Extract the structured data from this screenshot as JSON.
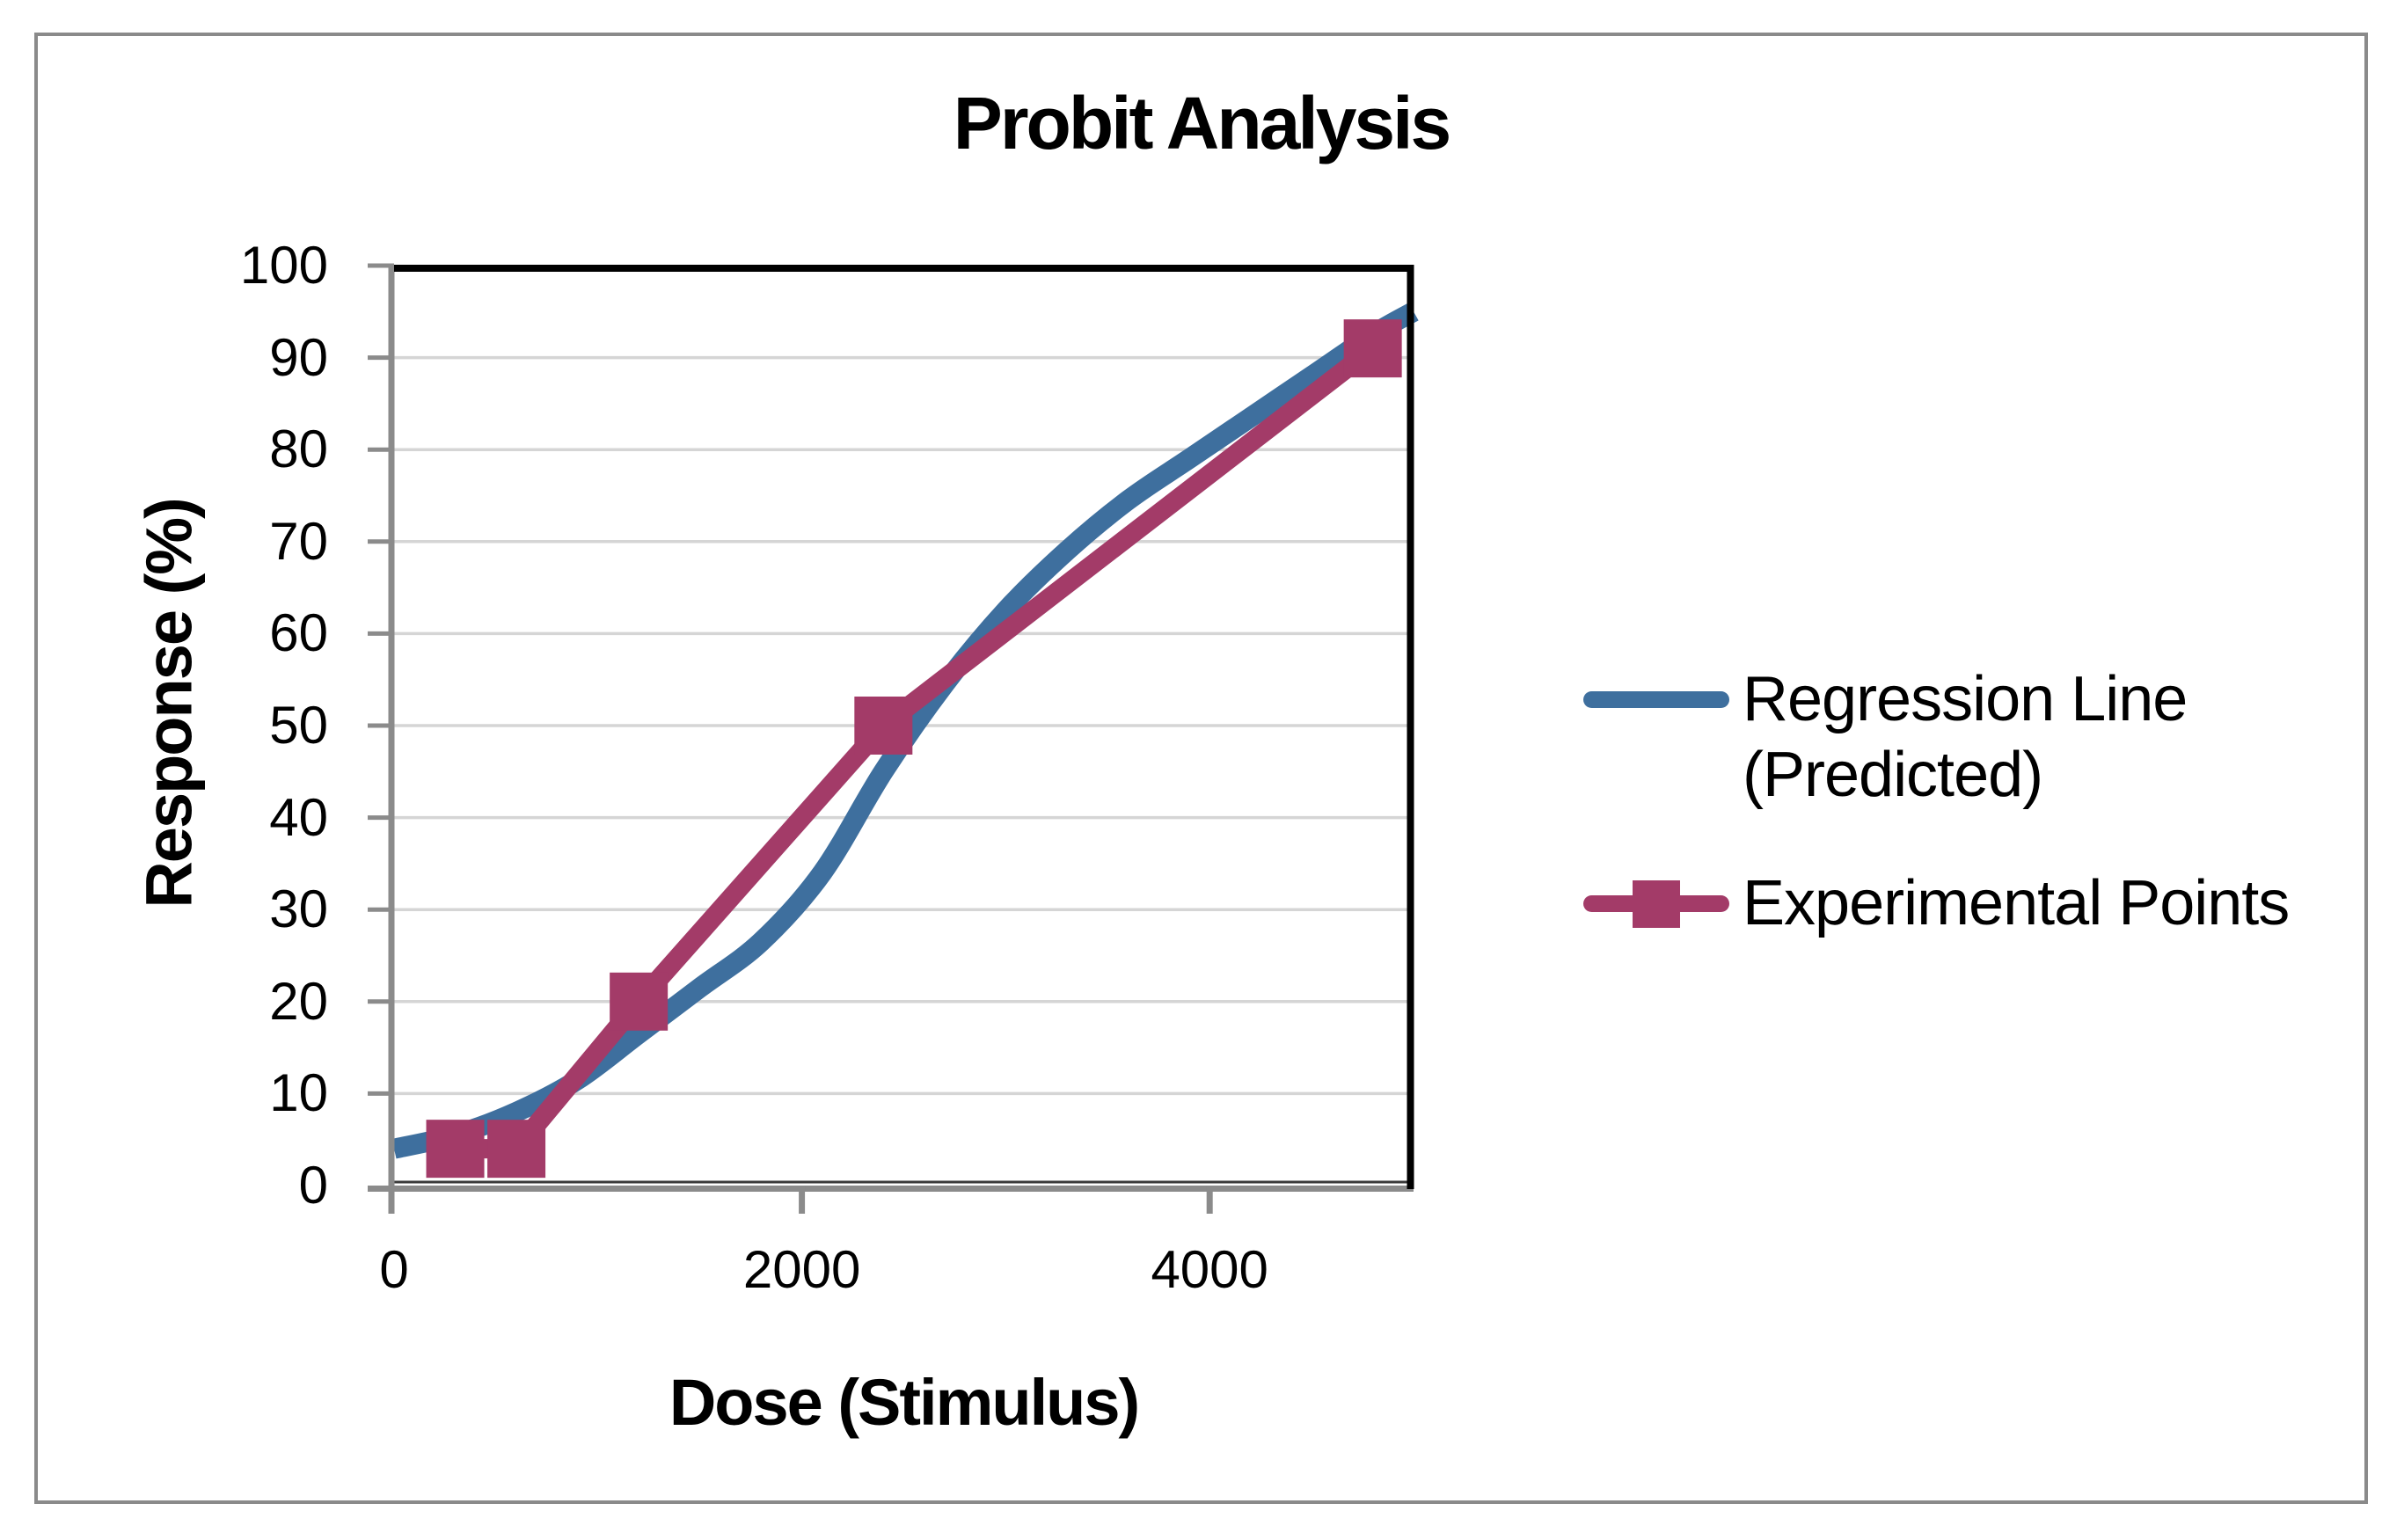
{
  "chart_data": {
    "type": "line",
    "title": "Probit Analysis",
    "xlabel": "Dose (Stimulus)",
    "ylabel": "Response (%)",
    "xlim": [
      0,
      5000
    ],
    "ylim": [
      0,
      100
    ],
    "x_ticks": [
      0,
      2000,
      4000
    ],
    "y_ticks": [
      0,
      10,
      20,
      30,
      40,
      50,
      60,
      70,
      80,
      90,
      100
    ],
    "grid": "horizontal-major-only",
    "legend_position": "right",
    "series": [
      {
        "name": "Regression Line (Predicted)",
        "type": "smooth_line",
        "color": "#3E6F9E",
        "marker": "none",
        "points": [
          [
            0,
            4
          ],
          [
            300,
            5.5
          ],
          [
            600,
            8
          ],
          [
            900,
            11.5
          ],
          [
            1200,
            16.5
          ],
          [
            1500,
            21.5
          ],
          [
            1800,
            26.5
          ],
          [
            2100,
            34
          ],
          [
            2400,
            45
          ],
          [
            2700,
            54.5
          ],
          [
            3000,
            62.5
          ],
          [
            3300,
            69
          ],
          [
            3600,
            74.5
          ],
          [
            3900,
            79
          ],
          [
            4200,
            83.5
          ],
          [
            4500,
            88
          ],
          [
            4800,
            92.5
          ],
          [
            5000,
            95
          ]
        ]
      },
      {
        "name": "Experimental Points",
        "type": "line_with_square_markers",
        "color": "#A33B68",
        "marker": "square",
        "points": [
          [
            300,
            4
          ],
          [
            600,
            4
          ],
          [
            1200,
            20
          ],
          [
            2400,
            50
          ],
          [
            4800,
            91
          ]
        ]
      }
    ]
  },
  "legend": {
    "items": [
      {
        "label": "Regression Line\n(Predicted)",
        "swatch": "line",
        "color": "#3E6F9E"
      },
      {
        "label": "Experimental Points",
        "swatch": "line-with-square-marker",
        "color": "#A33B68"
      }
    ]
  },
  "colors": {
    "regression_line": "#3E6F9E",
    "experimental_points": "#A33B68",
    "gridline": "#D5D5D5",
    "axis_line": "#8B8B8B",
    "plot_border": "#000000",
    "outer_frame": "#8A8A8A"
  }
}
